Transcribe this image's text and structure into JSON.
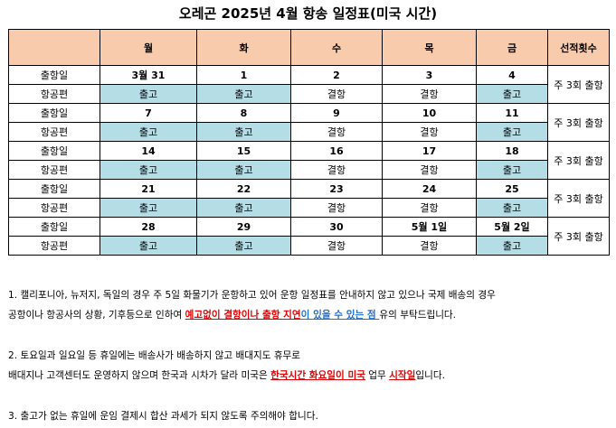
{
  "title": "오레곤 2025년 4월 항송 일정표(미국 시간)",
  "header": {
    "empty": "",
    "days": [
      "월",
      "화",
      "수",
      "목",
      "금"
    ],
    "freq": "선적횟수"
  },
  "labels": {
    "ship": "출항일",
    "flight": "항공편"
  },
  "weeks": [
    {
      "dates": [
        "3월 31",
        "1",
        "2",
        "3",
        "4"
      ],
      "status": [
        "출고",
        "출고",
        "결항",
        "결항",
        "출고"
      ],
      "freq": "주 3회 출항"
    },
    {
      "dates": [
        "7",
        "8",
        "9",
        "10",
        "11"
      ],
      "status": [
        "출고",
        "출고",
        "결항",
        "결항",
        "출고"
      ],
      "freq": "주 3회 출항"
    },
    {
      "dates": [
        "14",
        "15",
        "16",
        "17",
        "18"
      ],
      "status": [
        "출고",
        "출고",
        "결항",
        "결항",
        "출고"
      ],
      "freq": "주 3회 출항"
    },
    {
      "dates": [
        "21",
        "22",
        "23",
        "24",
        "25"
      ],
      "status": [
        "출고",
        "출고",
        "결항",
        "결항",
        "출고"
      ],
      "freq": "주 3회 출항"
    },
    {
      "dates": [
        "28",
        "29",
        "30",
        "5월 1일",
        "5월 2일"
      ],
      "status": [
        "출고",
        "출고",
        "결항",
        "결항",
        "출고"
      ],
      "freq": "주 3회 출항"
    }
  ],
  "colors": {
    "header_bg": "#f8cbad",
    "out_bg": "#b4dde6",
    "red": "#e30000",
    "blue": "#1f6fd1"
  },
  "notes": {
    "n1_a": "1. 캘리포니아, 뉴저지, 독일의 경우 주 5일 화물기가 운항하고 있어 운항 일정표를 안내하지 않고 있으나 국제 배송의 경우",
    "n1_b": "공항이나 항공사의 상황, 기후등으로 인하여 ",
    "n1_red": "예고없이 결항이나 출항 지연",
    "n1_blue": "이 있을 수 있는 점 ",
    "n1_c": "유의 부탁드립니다.",
    "n2_a": "2. 토요일과 일요일 등 휴일에는 배송사가 배송하지 않고 배대지도 휴무로",
    "n2_b": "배대지나 고객센터도 운영하지 않으며 한국과 시차가 달라 미국은 ",
    "n2_red": "한국시간 화요일이 미국",
    "n2_c": " 업무 ",
    "n2_red2": "시작일",
    "n2_d": "입니다.",
    "n3": "3. 출고가 없는 휴일에 운임 결제시 합산 과세가 되지 않도록 주의해야 합니다."
  }
}
